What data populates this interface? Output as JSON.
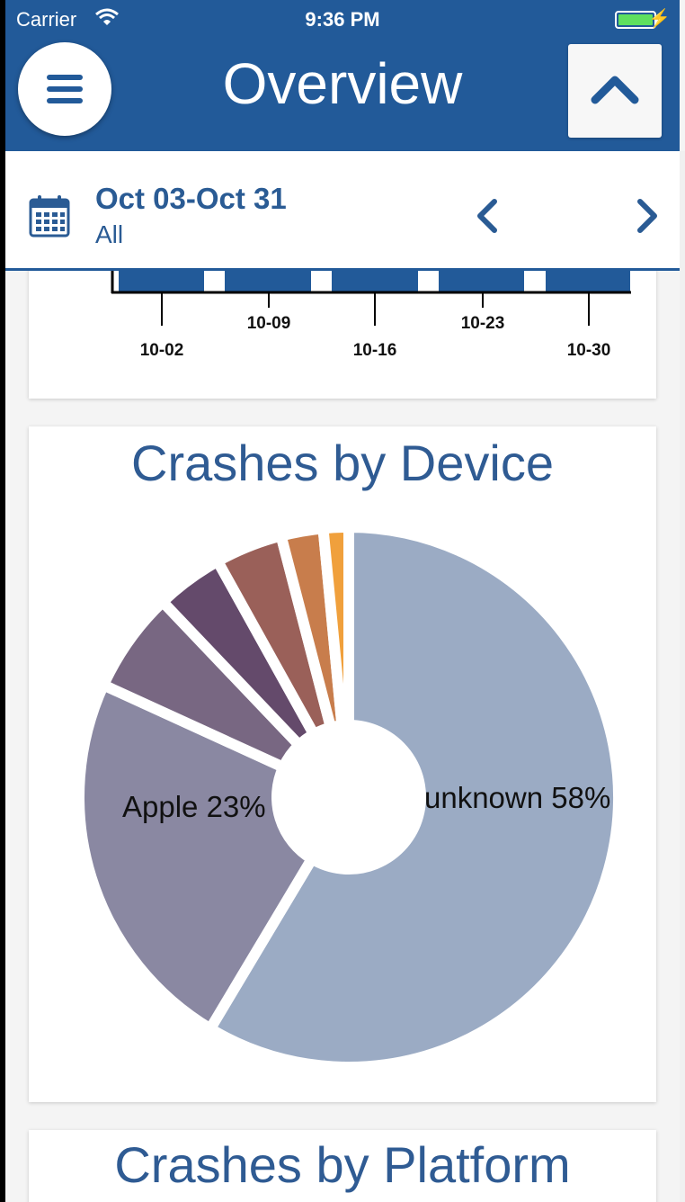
{
  "status_bar": {
    "carrier": "Carrier",
    "time": "9:36 PM"
  },
  "header": {
    "title": "Overview"
  },
  "date_bar": {
    "range": "Oct 03-Oct 31",
    "filter": "All"
  },
  "timeline_chart": {
    "ticks_upper": [
      "10-09",
      "10-23"
    ],
    "ticks_lower": [
      "10-02",
      "10-16",
      "10-30"
    ]
  },
  "crashes_by_device": {
    "title": "Crashes by Device",
    "labels": {
      "unknown": "unknown 58%",
      "apple": "Apple 23%"
    }
  },
  "crashes_by_platform": {
    "title": "Crashes by Platform"
  },
  "chart_data": {
    "type": "pie",
    "title": "Crashes by Device",
    "categories": [
      "unknown",
      "Apple",
      "",
      "",
      "",
      "",
      ""
    ],
    "values": [
      58,
      23,
      6,
      4,
      4,
      2.5,
      1.5
    ],
    "colors": [
      "#9babc4",
      "#8a88a2",
      "#786782",
      "#644a6b",
      "#9a6059",
      "#c87d4c",
      "#f0a03c"
    ],
    "labels": [
      "unknown 58%",
      "Apple 23%",
      "",
      "",
      "",
      "",
      ""
    ]
  }
}
